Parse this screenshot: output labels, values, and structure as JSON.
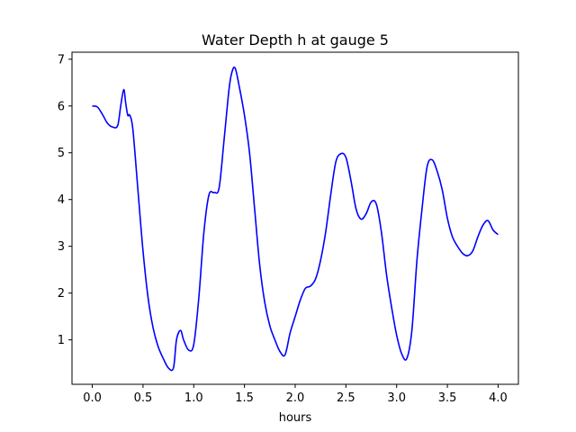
{
  "chart_data": {
    "type": "line",
    "title": "Water Depth h at gauge 5",
    "xlabel": "hours",
    "ylabel": "",
    "xlim": [
      -0.2,
      4.2
    ],
    "ylim": [
      0.05,
      7.15
    ],
    "xticks": [
      0.0,
      0.5,
      1.0,
      1.5,
      2.0,
      2.5,
      3.0,
      3.5,
      4.0
    ],
    "xtick_labels": [
      "0.0",
      "0.5",
      "1.0",
      "1.5",
      "2.0",
      "2.5",
      "3.0",
      "3.5",
      "4.0"
    ],
    "yticks": [
      1,
      2,
      3,
      4,
      5,
      6,
      7
    ],
    "ytick_labels": [
      "1",
      "2",
      "3",
      "4",
      "5",
      "6",
      "7"
    ],
    "grid": false,
    "series": [
      {
        "name": "",
        "color": "#0000ff",
        "x": [
          0.0,
          0.05,
          0.1,
          0.15,
          0.2,
          0.25,
          0.28,
          0.31,
          0.33,
          0.35,
          0.37,
          0.4,
          0.45,
          0.5,
          0.55,
          0.6,
          0.65,
          0.7,
          0.75,
          0.8,
          0.83,
          0.87,
          0.9,
          0.95,
          1.0,
          1.05,
          1.1,
          1.15,
          1.2,
          1.25,
          1.3,
          1.35,
          1.38,
          1.41,
          1.45,
          1.5,
          1.55,
          1.6,
          1.65,
          1.7,
          1.75,
          1.8,
          1.85,
          1.9,
          1.95,
          2.0,
          2.05,
          2.1,
          2.15,
          2.2,
          2.25,
          2.3,
          2.35,
          2.4,
          2.45,
          2.5,
          2.55,
          2.6,
          2.65,
          2.7,
          2.75,
          2.8,
          2.85,
          2.9,
          2.95,
          3.0,
          3.05,
          3.1,
          3.15,
          3.2,
          3.25,
          3.3,
          3.35,
          3.4,
          3.45,
          3.5,
          3.55,
          3.6,
          3.65,
          3.7,
          3.75,
          3.8,
          3.85,
          3.9,
          3.95,
          4.0
        ],
        "y": [
          6.0,
          5.98,
          5.82,
          5.63,
          5.55,
          5.58,
          6.0,
          6.35,
          6.05,
          5.8,
          5.8,
          5.5,
          4.2,
          2.9,
          1.9,
          1.25,
          0.85,
          0.6,
          0.4,
          0.4,
          1.0,
          1.2,
          1.0,
          0.78,
          0.9,
          1.9,
          3.3,
          4.1,
          4.15,
          4.25,
          5.3,
          6.4,
          6.75,
          6.8,
          6.4,
          5.8,
          5.0,
          3.8,
          2.6,
          1.8,
          1.3,
          1.0,
          0.75,
          0.68,
          1.15,
          1.5,
          1.85,
          2.1,
          2.15,
          2.3,
          2.7,
          3.3,
          4.1,
          4.8,
          4.98,
          4.9,
          4.4,
          3.8,
          3.58,
          3.7,
          3.95,
          3.9,
          3.3,
          2.4,
          1.7,
          1.1,
          0.7,
          0.6,
          1.2,
          2.7,
          3.8,
          4.7,
          4.85,
          4.6,
          4.2,
          3.6,
          3.2,
          3.0,
          2.85,
          2.8,
          2.9,
          3.2,
          3.45,
          3.55,
          3.35,
          3.25
        ]
      }
    ]
  }
}
